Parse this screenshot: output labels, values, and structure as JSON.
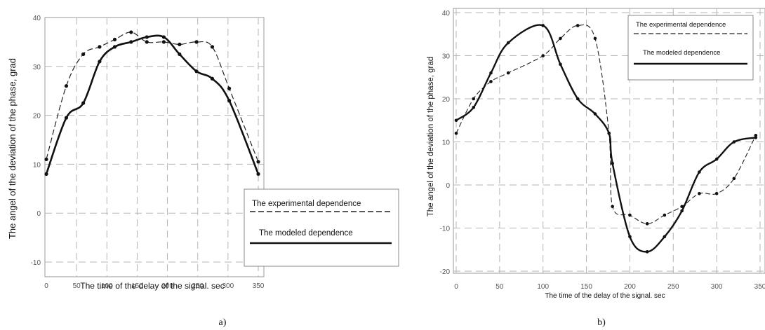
{
  "captions": [
    "a)",
    "b)"
  ],
  "chart_data": [
    {
      "type": "line",
      "xlabel": "The time of the delay of the signal. sec",
      "ylabel": "The angel of the deviation of the phase, grad",
      "xlim": [
        0,
        350
      ],
      "ylim": [
        -10,
        40
      ],
      "x_ticks": [
        "0",
        "50",
        "100",
        "150",
        "200",
        "250",
        "300",
        "350"
      ],
      "y_ticks": [
        "40",
        "30",
        "20",
        "10",
        "0",
        "-10"
      ],
      "grid": true,
      "legend_position": "bottom-right",
      "series": [
        {
          "name": "The experimental dependence",
          "style": "dashed",
          "x": [
            0,
            33,
            61,
            88,
            113,
            140,
            166,
            194,
            220,
            248,
            274,
            302,
            350
          ],
          "y": [
            11,
            26,
            32.5,
            34,
            35.5,
            37,
            35,
            35,
            34.5,
            35,
            34,
            25.5,
            10.5
          ]
        },
        {
          "name": "The modeled dependence",
          "style": "solid",
          "x": [
            0,
            33,
            61,
            88,
            113,
            140,
            166,
            194,
            220,
            248,
            274,
            302,
            350
          ],
          "y": [
            8,
            19.5,
            22.5,
            31,
            34,
            35,
            36,
            36,
            32.5,
            29,
            27.5,
            23,
            8
          ]
        }
      ]
    },
    {
      "type": "line",
      "xlabel": "The time of the delay of the signal. sec",
      "ylabel": "The angel of the deviation of the phase, grad",
      "xlim": [
        0,
        350
      ],
      "ylim": [
        -20,
        40
      ],
      "x_ticks": [
        "0",
        "50",
        "100",
        "150",
        "200",
        "250",
        "300",
        "350"
      ],
      "y_ticks": [
        "40",
        "30",
        "20",
        "10",
        "0",
        "-10",
        "-20"
      ],
      "grid": true,
      "legend_position": "top-right",
      "series": [
        {
          "name": "The experimental dependence",
          "style": "dashed",
          "x": [
            0,
            20,
            40,
            60,
            100,
            120,
            140,
            160,
            176,
            180,
            200,
            220,
            240,
            260,
            280,
            300,
            320,
            345
          ],
          "y": [
            12,
            20,
            24,
            26,
            30,
            34,
            37,
            34,
            12,
            -5,
            -7,
            -9,
            -7,
            -5,
            -2,
            -2,
            1.5,
            11.5
          ]
        },
        {
          "name": "The modeled dependence",
          "style": "solid",
          "x": [
            0,
            20,
            40,
            60,
            100,
            120,
            140,
            160,
            176,
            180,
            200,
            220,
            240,
            260,
            280,
            300,
            320,
            345
          ],
          "y": [
            15,
            18,
            26,
            33,
            37,
            28,
            20,
            16.5,
            12,
            5,
            -12,
            -15.5,
            -12,
            -6,
            3,
            6,
            10,
            11
          ]
        }
      ]
    }
  ]
}
